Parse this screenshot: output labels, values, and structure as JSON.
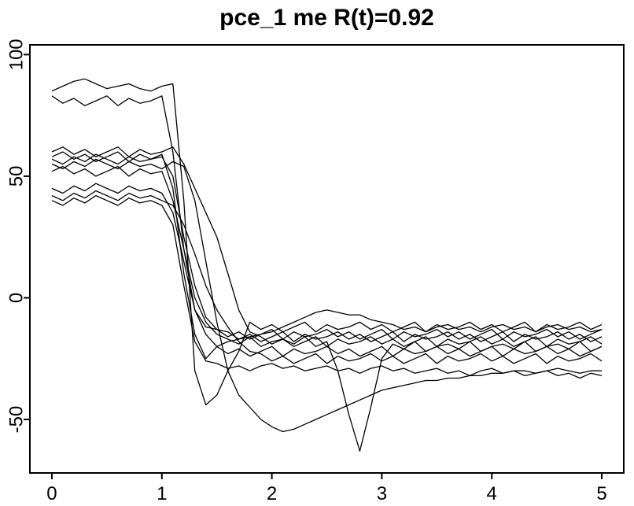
{
  "chart_data": {
    "type": "line",
    "title": "pce_1 me R(t)=0.92",
    "xlabel": "",
    "ylabel": "",
    "x_ticks": [
      0,
      1,
      2,
      3,
      4,
      5
    ],
    "y_ticks": [
      -50,
      0,
      50,
      100
    ],
    "xlim": [
      -0.2,
      5.2
    ],
    "ylim": [
      -72,
      104
    ],
    "grid": false,
    "legend": "none",
    "line_color": "#000000",
    "background_color": "#ffffff",
    "x": [
      0,
      0.1,
      0.2,
      0.3,
      0.4,
      0.5,
      0.6,
      0.7,
      0.8,
      0.9,
      1.0,
      1.1,
      1.2,
      1.3,
      1.4,
      1.5,
      1.6,
      1.7,
      1.8,
      1.9,
      2.0,
      2.1,
      2.2,
      2.3,
      2.4,
      2.5,
      2.6,
      2.7,
      2.8,
      2.9,
      3.0,
      3.1,
      3.2,
      3.3,
      3.4,
      3.5,
      3.6,
      3.7,
      3.8,
      3.9,
      4.0,
      4.1,
      4.2,
      4.3,
      4.4,
      4.5,
      4.6,
      4.7,
      4.8,
      4.9,
      5.0
    ],
    "series": [
      {
        "values": [
          83,
          80,
          82,
          79,
          81,
          83,
          79,
          82,
          80,
          81,
          83,
          60,
          20,
          -5,
          -12,
          -13,
          -16,
          -14,
          -17,
          -15,
          -13,
          -17,
          -14,
          -16,
          -15,
          -13,
          -16,
          -14,
          -17,
          -15,
          -13,
          -17,
          -14,
          -16,
          -15,
          -13,
          -16,
          -14,
          -17,
          -15,
          -13,
          -17,
          -14,
          -16,
          -15,
          -13,
          -16,
          -14,
          -17,
          -15,
          -13
        ]
      },
      {
        "values": [
          85,
          87,
          89,
          90,
          88,
          86,
          87,
          88,
          86,
          85,
          87,
          88,
          40,
          -30,
          -44,
          -40,
          -30,
          -22,
          -10,
          -13,
          -11,
          -14,
          -12,
          -10,
          -14,
          -11,
          -13,
          -12,
          -10,
          -13,
          -11,
          -14,
          -12,
          -10,
          -14,
          -11,
          -13,
          -12,
          -10,
          -13,
          -11,
          -14,
          -12,
          -10,
          -14,
          -11,
          -13,
          -12,
          -10,
          -13,
          -11
        ]
      },
      {
        "values": [
          60,
          62,
          59,
          61,
          58,
          60,
          62,
          58,
          61,
          59,
          60,
          62,
          55,
          45,
          35,
          25,
          10,
          -5,
          -14,
          -16,
          -19,
          -17,
          -20,
          -18,
          -16,
          -20,
          -17,
          -19,
          -18,
          -16,
          -19,
          -17,
          -20,
          -18,
          -16,
          -20,
          -17,
          -19,
          -18,
          -16,
          -19,
          -17,
          -20,
          -18,
          -16,
          -20,
          -17,
          -19,
          -18,
          -16,
          -19
        ]
      },
      {
        "values": [
          57,
          55,
          58,
          56,
          59,
          57,
          55,
          58,
          56,
          57,
          59,
          45,
          10,
          -15,
          -25,
          -20,
          -23,
          -21,
          -24,
          -22,
          -20,
          -24,
          -21,
          -23,
          -22,
          -20,
          -23,
          -21,
          -24,
          -22,
          -20,
          -24,
          -21,
          -23,
          -22,
          -20,
          -23,
          -21,
          -24,
          -22,
          -20,
          -24,
          -21,
          -23,
          -22,
          -20,
          -23,
          -21,
          -24,
          -22,
          -20
        ]
      },
      {
        "values": [
          55,
          53,
          56,
          54,
          57,
          55,
          53,
          56,
          54,
          55,
          53,
          56,
          54,
          40,
          15,
          -10,
          -30,
          -40,
          -45,
          -50,
          -53,
          -55,
          -54,
          -52,
          -50,
          -48,
          -46,
          -44,
          -42,
          -40,
          -38,
          -37,
          -36,
          -35,
          -34,
          -34,
          -33,
          -33,
          -32,
          -32,
          -31,
          -31,
          -30,
          -30,
          -31,
          -30,
          -29,
          -30,
          -31,
          -30,
          -30
        ]
      },
      {
        "values": [
          52,
          54,
          51,
          53,
          50,
          52,
          54,
          50,
          53,
          51,
          52,
          40,
          20,
          0,
          -10,
          -15,
          -17,
          -19,
          -16,
          -20,
          -18,
          -17,
          -19,
          -16,
          -20,
          -18,
          -30,
          -48,
          -63,
          -45,
          -25,
          -19,
          -21,
          -18,
          -22,
          -20,
          -19,
          -21,
          -18,
          -22,
          -20,
          -19,
          -21,
          -18,
          -22,
          -20,
          -19,
          -21,
          -18,
          -22,
          -20
        ]
      },
      {
        "values": [
          45,
          43,
          46,
          44,
          47,
          45,
          43,
          46,
          44,
          45,
          43,
          35,
          15,
          -5,
          -15,
          -20,
          -18,
          -17,
          -16,
          -15,
          -14,
          -12,
          -10,
          -8,
          -6,
          -5,
          -6,
          -7,
          -7,
          -9,
          -10,
          -11,
          -13,
          -12,
          -14,
          -12,
          -11,
          -13,
          -12,
          -14,
          -12,
          -11,
          -13,
          -12,
          -14,
          -12,
          -11,
          -13,
          -12,
          -14,
          -13
        ]
      },
      {
        "values": [
          42,
          40,
          43,
          41,
          44,
          42,
          40,
          43,
          41,
          42,
          40,
          38,
          30,
          18,
          5,
          -5,
          -12,
          -18,
          -22,
          -23,
          -26,
          -24,
          -27,
          -25,
          -23,
          -27,
          -24,
          -26,
          -25,
          -23,
          -26,
          -24,
          -27,
          -25,
          -23,
          -27,
          -24,
          -26,
          -25,
          -23,
          -26,
          -24,
          -27,
          -25,
          -23,
          -27,
          -24,
          -26,
          -25,
          -23,
          -26
        ]
      },
      {
        "values": [
          40,
          38,
          41,
          39,
          42,
          40,
          38,
          41,
          39,
          40,
          38,
          30,
          5,
          -18,
          -26,
          -27,
          -29,
          -28,
          -30,
          -28,
          -27,
          -29,
          -28,
          -30,
          -29,
          -28,
          -30,
          -29,
          -31,
          -29,
          -28,
          -30,
          -29,
          -31,
          -30,
          -29,
          -31,
          -30,
          -32,
          -30,
          -29,
          -31,
          -30,
          -32,
          -31,
          -30,
          -32,
          -31,
          -33,
          -31,
          -32
        ]
      },
      {
        "values": [
          58,
          60,
          57,
          59,
          56,
          58,
          60,
          56,
          59,
          57,
          58,
          50,
          25,
          5,
          -8,
          -13,
          -14,
          -17,
          -15,
          -18,
          -16,
          -14,
          -18,
          -15,
          -17,
          -16,
          -14,
          -17,
          -15,
          -18,
          -16,
          -14,
          -18,
          -15,
          -17,
          -16,
          -14,
          -17,
          -15,
          -18,
          -16,
          -14,
          -18,
          -15,
          -17,
          -16,
          -14,
          -17,
          -15,
          -18,
          -16
        ]
      }
    ]
  }
}
